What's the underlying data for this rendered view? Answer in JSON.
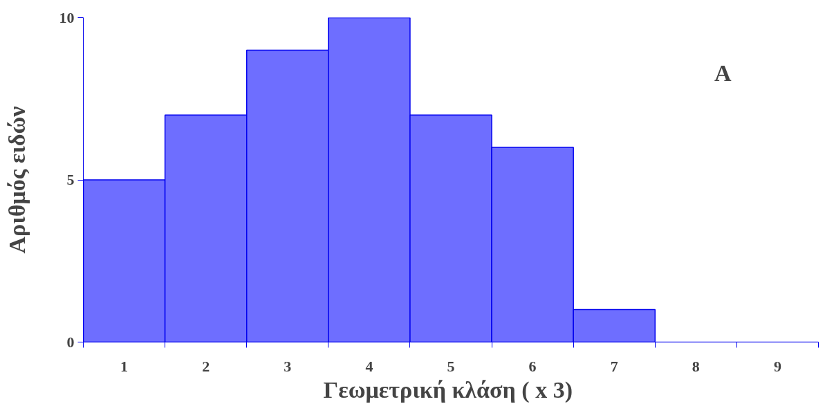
{
  "chart_data": {
    "type": "bar",
    "xlabel": "Γεωμετρική κλάση  ( x 3)",
    "ylabel": "Αριθμός ειδών",
    "categories": [
      "1",
      "2",
      "3",
      "4",
      "5",
      "6",
      "7",
      "8",
      "9"
    ],
    "values": [
      5,
      7,
      9,
      10,
      7,
      6,
      1,
      0,
      0
    ],
    "color": "#6e6eff",
    "ylim": [
      0,
      10
    ],
    "yticks": [
      0,
      5,
      10
    ],
    "grid": false,
    "annotations": [
      "A"
    ]
  }
}
